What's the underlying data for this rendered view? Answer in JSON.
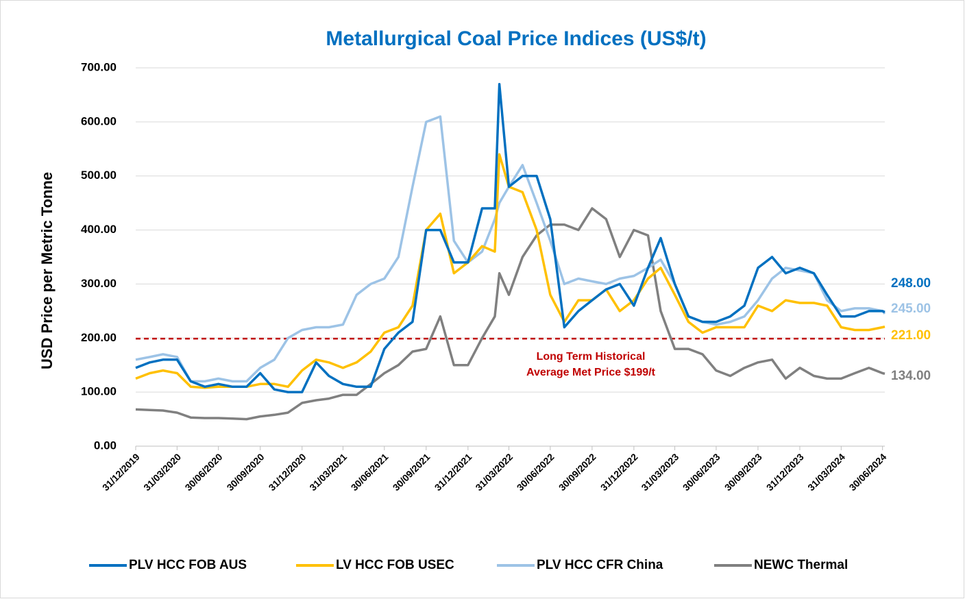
{
  "chart_data": {
    "type": "line",
    "title": "Metallurgical Coal Price Indices (US$/t)",
    "y_label": "USD Price per Metric Tonne",
    "x": [
      "2019-12-31",
      "2020-01-31",
      "2020-02-29",
      "2020-03-31",
      "2020-04-30",
      "2020-05-31",
      "2020-06-30",
      "2020-07-31",
      "2020-08-31",
      "2020-09-30",
      "2020-10-31",
      "2020-11-30",
      "2020-12-31",
      "2021-01-31",
      "2021-02-28",
      "2021-03-31",
      "2021-04-30",
      "2021-05-31",
      "2021-06-30",
      "2021-07-31",
      "2021-08-31",
      "2021-09-30",
      "2021-10-31",
      "2021-11-30",
      "2021-12-31",
      "2022-01-31",
      "2022-02-28",
      "2022-03-10",
      "2022-03-31",
      "2022-04-30",
      "2022-05-31",
      "2022-06-30",
      "2022-07-31",
      "2022-08-31",
      "2022-09-30",
      "2022-10-31",
      "2022-11-30",
      "2022-12-31",
      "2023-01-31",
      "2023-02-28",
      "2023-03-31",
      "2023-04-30",
      "2023-05-31",
      "2023-06-30",
      "2023-07-31",
      "2023-08-31",
      "2023-09-30",
      "2023-10-31",
      "2023-11-30",
      "2023-12-31",
      "2024-01-31",
      "2024-02-29",
      "2024-03-31",
      "2024-04-30",
      "2024-05-31",
      "2024-06-30",
      "2024-07-05"
    ],
    "series": [
      {
        "name": "PLV HCC FOB AUS",
        "color": "#0070c0",
        "end_label": {
          "value": 248,
          "label": "248.00"
        },
        "values": [
          145,
          155,
          160,
          160,
          120,
          110,
          115,
          110,
          110,
          135,
          105,
          100,
          100,
          155,
          130,
          115,
          110,
          110,
          180,
          210,
          230,
          400,
          400,
          340,
          340,
          440,
          440,
          670,
          480,
          500,
          500,
          420,
          220,
          250,
          270,
          290,
          300,
          260,
          330,
          385,
          300,
          240,
          230,
          230,
          240,
          260,
          330,
          350,
          320,
          330,
          320,
          280,
          240,
          240,
          250,
          250,
          248
        ]
      },
      {
        "name": "LV HCC FOB USEC",
        "color": "#ffc000",
        "end_label": {
          "value": 221,
          "label": "221.00"
        },
        "values": [
          125,
          135,
          140,
          135,
          110,
          108,
          110,
          110,
          110,
          115,
          115,
          110,
          140,
          160,
          155,
          145,
          155,
          175,
          210,
          220,
          260,
          400,
          430,
          320,
          340,
          370,
          360,
          540,
          480,
          470,
          400,
          280,
          230,
          270,
          270,
          290,
          250,
          270,
          310,
          330,
          280,
          230,
          210,
          220,
          220,
          220,
          260,
          250,
          270,
          265,
          265,
          260,
          220,
          215,
          215,
          220,
          221
        ]
      },
      {
        "name": "PLV HCC CFR China",
        "color": "#9dc3e6",
        "end_label": {
          "value": 245,
          "label": "245.00"
        },
        "values": [
          160,
          165,
          170,
          165,
          120,
          120,
          125,
          120,
          120,
          145,
          160,
          200,
          215,
          220,
          220,
          225,
          280,
          300,
          310,
          350,
          480,
          600,
          610,
          380,
          340,
          360,
          420,
          450,
          480,
          520,
          450,
          380,
          300,
          310,
          305,
          300,
          310,
          315,
          330,
          345,
          300,
          240,
          230,
          225,
          230,
          240,
          270,
          310,
          330,
          325,
          320,
          270,
          250,
          255,
          255,
          250,
          245
        ]
      },
      {
        "name": "NEWC Thermal",
        "color": "#808080",
        "end_label": {
          "value": 134,
          "label": "134.00"
        },
        "values": [
          68,
          67,
          66,
          62,
          53,
          52,
          52,
          51,
          50,
          55,
          58,
          62,
          80,
          85,
          88,
          95,
          95,
          115,
          135,
          150,
          175,
          180,
          240,
          150,
          150,
          200,
          240,
          320,
          280,
          350,
          390,
          410,
          410,
          400,
          440,
          420,
          350,
          400,
          390,
          250,
          180,
          180,
          170,
          140,
          130,
          145,
          155,
          160,
          125,
          145,
          130,
          125,
          125,
          135,
          145,
          135,
          134
        ]
      }
    ],
    "reference_line": {
      "value": 199,
      "color": "#c00000",
      "label": [
        "Long Term Historical",
        "Average Met Price $199/t"
      ]
    },
    "xlim": [
      "2019-12-31",
      "2024-07-05"
    ],
    "xticks": [
      {
        "value": "2019-12-31",
        "label": "31/12/2019"
      },
      {
        "value": "2020-03-31",
        "label": "31/03/2020"
      },
      {
        "value": "2020-06-30",
        "label": "30/06/2020"
      },
      {
        "value": "2020-09-30",
        "label": "30/09/2020"
      },
      {
        "value": "2020-12-31",
        "label": "31/12/2020"
      },
      {
        "value": "2021-03-31",
        "label": "31/03/2021"
      },
      {
        "value": "2021-06-30",
        "label": "30/06/2021"
      },
      {
        "value": "2021-09-30",
        "label": "30/09/2021"
      },
      {
        "value": "2021-12-31",
        "label": "31/12/2021"
      },
      {
        "value": "2022-03-31",
        "label": "31/03/2022"
      },
      {
        "value": "2022-06-30",
        "label": "30/06/2022"
      },
      {
        "value": "2022-09-30",
        "label": "30/09/2022"
      },
      {
        "value": "2022-12-31",
        "label": "31/12/2022"
      },
      {
        "value": "2023-03-31",
        "label": "31/03/2023"
      },
      {
        "value": "2023-06-30",
        "label": "30/06/2023"
      },
      {
        "value": "2023-09-30",
        "label": "30/09/2023"
      },
      {
        "value": "2023-12-31",
        "label": "31/12/2023"
      },
      {
        "value": "2024-03-31",
        "label": "31/03/2024"
      },
      {
        "value": "2024-06-30",
        "label": "30/06/2024"
      }
    ],
    "ylim": [
      0,
      700
    ],
    "yticks": [
      {
        "value": 0,
        "label": "0.00"
      },
      {
        "value": 100,
        "label": "100.00"
      },
      {
        "value": 200,
        "label": "200.00"
      },
      {
        "value": 300,
        "label": "300.00"
      },
      {
        "value": 400,
        "label": "400.00"
      },
      {
        "value": 500,
        "label": "500.00"
      },
      {
        "value": 600,
        "label": "600.00"
      },
      {
        "value": 700,
        "label": "700.00"
      }
    ],
    "grid": true,
    "legend": "bottom"
  }
}
